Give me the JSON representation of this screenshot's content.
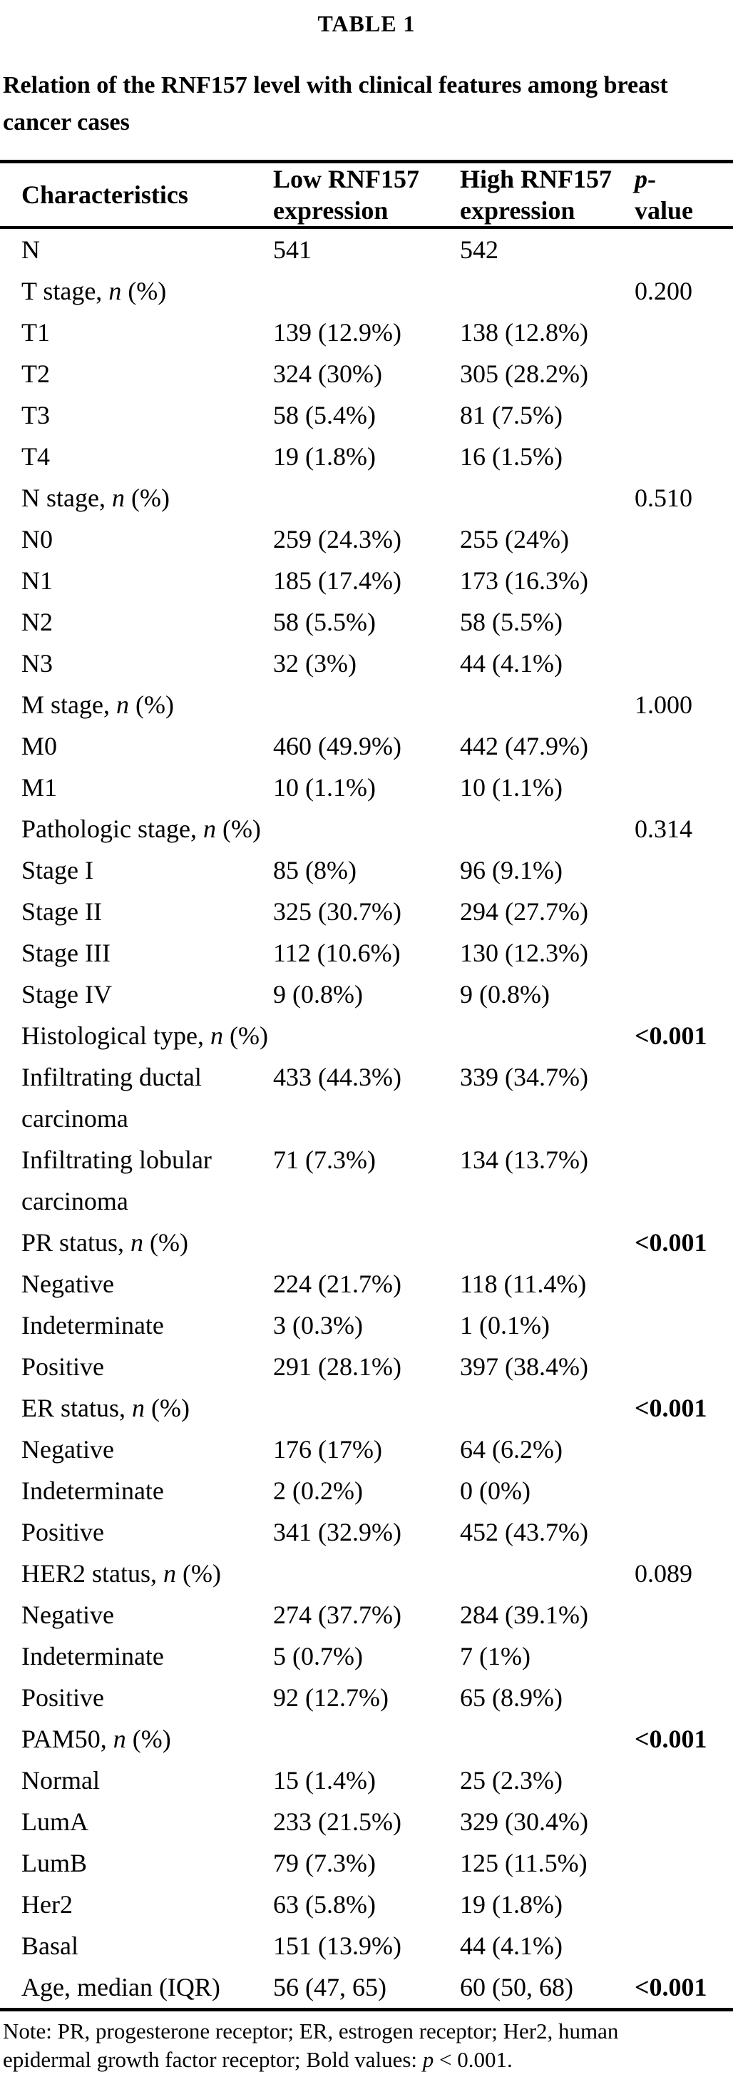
{
  "table_label": "TABLE 1",
  "caption_line1": "Relation of the RNF157 level with clinical features among breast",
  "caption_line2": "cancer cases",
  "header": {
    "characteristics": "Characteristics",
    "low_line1": "Low RNF157",
    "low_line2": "expression",
    "high_line1": "High RNF157",
    "high_line2": "expression",
    "p_italic": "p",
    "p_dash": "-",
    "p_line2": "value"
  },
  "rows": [
    {
      "label": "N",
      "label_it": "",
      "label_end": "",
      "low": "541",
      "high": "542",
      "p": "",
      "p_bold": false,
      "two_line": false
    },
    {
      "label": "T stage, ",
      "label_it": "n",
      "label_end": " (%)",
      "low": "",
      "high": "",
      "p": "0.200",
      "p_bold": false,
      "two_line": false
    },
    {
      "label": "T1",
      "label_it": "",
      "label_end": "",
      "low": "139 (12.9%)",
      "high": "138 (12.8%)",
      "p": "",
      "p_bold": false,
      "two_line": false
    },
    {
      "label": "T2",
      "label_it": "",
      "label_end": "",
      "low": "324 (30%)",
      "high": "305 (28.2%)",
      "p": "",
      "p_bold": false,
      "two_line": false
    },
    {
      "label": "T3",
      "label_it": "",
      "label_end": "",
      "low": "58 (5.4%)",
      "high": "81 (7.5%)",
      "p": "",
      "p_bold": false,
      "two_line": false
    },
    {
      "label": "T4",
      "label_it": "",
      "label_end": "",
      "low": "19 (1.8%)",
      "high": "16 (1.5%)",
      "p": "",
      "p_bold": false,
      "two_line": false
    },
    {
      "label": "N stage, ",
      "label_it": "n",
      "label_end": " (%)",
      "low": "",
      "high": "",
      "p": "0.510",
      "p_bold": false,
      "two_line": false
    },
    {
      "label": "N0",
      "label_it": "",
      "label_end": "",
      "low": "259 (24.3%)",
      "high": "255 (24%)",
      "p": "",
      "p_bold": false,
      "two_line": false
    },
    {
      "label": "N1",
      "label_it": "",
      "label_end": "",
      "low": "185 (17.4%)",
      "high": "173 (16.3%)",
      "p": "",
      "p_bold": false,
      "two_line": false
    },
    {
      "label": "N2",
      "label_it": "",
      "label_end": "",
      "low": "58 (5.5%)",
      "high": "58 (5.5%)",
      "p": "",
      "p_bold": false,
      "two_line": false
    },
    {
      "label": "N3",
      "label_it": "",
      "label_end": "",
      "low": "32 (3%)",
      "high": "44 (4.1%)",
      "p": "",
      "p_bold": false,
      "two_line": false
    },
    {
      "label": "M stage, ",
      "label_it": "n",
      "label_end": " (%)",
      "low": "",
      "high": "",
      "p": "1.000",
      "p_bold": false,
      "two_line": false
    },
    {
      "label": "M0",
      "label_it": "",
      "label_end": "",
      "low": "460 (49.9%)",
      "high": "442 (47.9%)",
      "p": "",
      "p_bold": false,
      "two_line": false
    },
    {
      "label": "M1",
      "label_it": "",
      "label_end": "",
      "low": "10 (1.1%)",
      "high": "10 (1.1%)",
      "p": "",
      "p_bold": false,
      "two_line": false
    },
    {
      "label": "Pathologic stage, ",
      "label_it": "n",
      "label_end": " (%)",
      "low": "",
      "high": "",
      "p": "0.314",
      "p_bold": false,
      "two_line": false
    },
    {
      "label": "Stage I",
      "label_it": "",
      "label_end": "",
      "low": "85 (8%)",
      "high": "96 (9.1%)",
      "p": "",
      "p_bold": false,
      "two_line": false
    },
    {
      "label": "Stage II",
      "label_it": "",
      "label_end": "",
      "low": "325 (30.7%)",
      "high": "294 (27.7%)",
      "p": "",
      "p_bold": false,
      "two_line": false
    },
    {
      "label": "Stage III",
      "label_it": "",
      "label_end": "",
      "low": "112 (10.6%)",
      "high": "130 (12.3%)",
      "p": "",
      "p_bold": false,
      "two_line": false
    },
    {
      "label": "Stage IV",
      "label_it": "",
      "label_end": "",
      "low": "9 (0.8%)",
      "high": "9 (0.8%)",
      "p": "",
      "p_bold": false,
      "two_line": false
    },
    {
      "label": "Histological type, ",
      "label_it": "n",
      "label_end": " (%)",
      "low": "",
      "high": "",
      "p": "<0.001",
      "p_bold": true,
      "two_line": false
    },
    {
      "label": "Infiltrating ductal carcinoma",
      "label_it": "",
      "label_end": "",
      "low": "433 (44.3%)",
      "high": "339 (34.7%)",
      "p": "",
      "p_bold": false,
      "two_line": true
    },
    {
      "label": "Infiltrating lobular carcinoma",
      "label_it": "",
      "label_end": "",
      "low": "71 (7.3%)",
      "high": "134 (13.7%)",
      "p": "",
      "p_bold": false,
      "two_line": true
    },
    {
      "label": "PR status, ",
      "label_it": "n",
      "label_end": " (%)",
      "low": "",
      "high": "",
      "p": "<0.001",
      "p_bold": true,
      "two_line": false
    },
    {
      "label": "Negative",
      "label_it": "",
      "label_end": "",
      "low": "224 (21.7%)",
      "high": "118 (11.4%)",
      "p": "",
      "p_bold": false,
      "two_line": false
    },
    {
      "label": "Indeterminate",
      "label_it": "",
      "label_end": "",
      "low": "3 (0.3%)",
      "high": "1 (0.1%)",
      "p": "",
      "p_bold": false,
      "two_line": false
    },
    {
      "label": "Positive",
      "label_it": "",
      "label_end": "",
      "low": "291 (28.1%)",
      "high": "397 (38.4%)",
      "p": "",
      "p_bold": false,
      "two_line": false
    },
    {
      "label": "ER status, ",
      "label_it": "n",
      "label_end": " (%)",
      "low": "",
      "high": "",
      "p": "<0.001",
      "p_bold": true,
      "two_line": false
    },
    {
      "label": "Negative",
      "label_it": "",
      "label_end": "",
      "low": "176 (17%)",
      "high": "64 (6.2%)",
      "p": "",
      "p_bold": false,
      "two_line": false
    },
    {
      "label": "Indeterminate",
      "label_it": "",
      "label_end": "",
      "low": "2 (0.2%)",
      "high": "0 (0%)",
      "p": "",
      "p_bold": false,
      "two_line": false
    },
    {
      "label": "Positive",
      "label_it": "",
      "label_end": "",
      "low": "341 (32.9%)",
      "high": "452 (43.7%)",
      "p": "",
      "p_bold": false,
      "two_line": false
    },
    {
      "label": "HER2 status, ",
      "label_it": "n",
      "label_end": " (%)",
      "low": "",
      "high": "",
      "p": "0.089",
      "p_bold": false,
      "two_line": false
    },
    {
      "label": "Negative",
      "label_it": "",
      "label_end": "",
      "low": "274 (37.7%)",
      "high": "284 (39.1%)",
      "p": "",
      "p_bold": false,
      "two_line": false
    },
    {
      "label": "Indeterminate",
      "label_it": "",
      "label_end": "",
      "low": "5 (0.7%)",
      "high": "7 (1%)",
      "p": "",
      "p_bold": false,
      "two_line": false
    },
    {
      "label": "Positive",
      "label_it": "",
      "label_end": "",
      "low": "92 (12.7%)",
      "high": "65 (8.9%)",
      "p": "",
      "p_bold": false,
      "two_line": false
    },
    {
      "label": "PAM50, ",
      "label_it": "n",
      "label_end": " (%)",
      "low": "",
      "high": "",
      "p": "<0.001",
      "p_bold": true,
      "two_line": false
    },
    {
      "label": "Normal",
      "label_it": "",
      "label_end": "",
      "low": "15 (1.4%)",
      "high": "25 (2.3%)",
      "p": "",
      "p_bold": false,
      "two_line": false
    },
    {
      "label": "LumA",
      "label_it": "",
      "label_end": "",
      "low": "233 (21.5%)",
      "high": "329 (30.4%)",
      "p": "",
      "p_bold": false,
      "two_line": false
    },
    {
      "label": "LumB",
      "label_it": "",
      "label_end": "",
      "low": "79 (7.3%)",
      "high": "125 (11.5%)",
      "p": "",
      "p_bold": false,
      "two_line": false
    },
    {
      "label": "Her2",
      "label_it": "",
      "label_end": "",
      "low": "63 (5.8%)",
      "high": "19 (1.8%)",
      "p": "",
      "p_bold": false,
      "two_line": false
    },
    {
      "label": "Basal",
      "label_it": "",
      "label_end": "",
      "low": "151 (13.9%)",
      "high": "44 (4.1%)",
      "p": "",
      "p_bold": false,
      "two_line": false
    },
    {
      "label": "Age, median (IQR)",
      "label_it": "",
      "label_end": "",
      "low": "56 (47, 65)",
      "high": "60 (50, 68)",
      "p": "<0.001",
      "p_bold": true,
      "two_line": false
    }
  ],
  "note": {
    "line1": "Note: PR, progesterone receptor; ER, estrogen receptor; Her2, human",
    "line2_pre": "epidermal growth factor receptor; Bold values: ",
    "line2_italic": "p",
    "line2_post": " < 0.001."
  }
}
